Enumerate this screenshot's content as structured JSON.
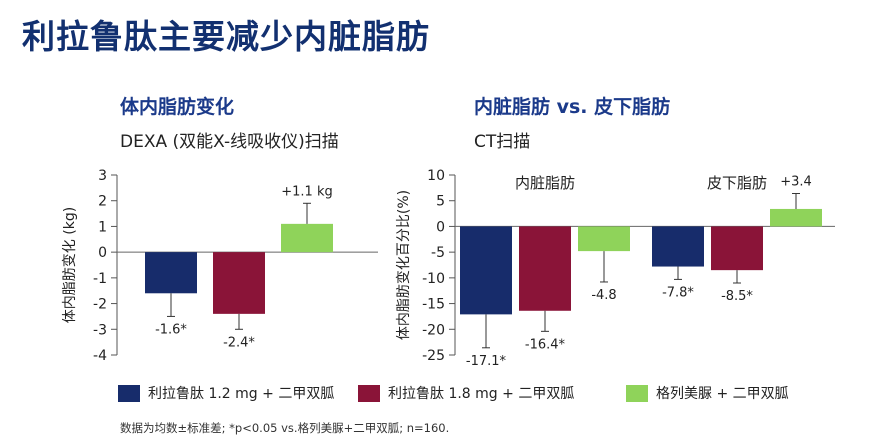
{
  "title": "利拉鲁肽主要减少内脏脂肪",
  "colors": {
    "lira12": "#172c6b",
    "lira18": "#8a1438",
    "glim": "#8fd35a",
    "title": "#123070"
  },
  "legend": [
    {
      "label": "利拉鲁肽 1.2 mg + 二甲双胍",
      "color": "#172c6b"
    },
    {
      "label": "利拉鲁肽 1.8 mg + 二甲双胍",
      "color": "#8a1438"
    },
    {
      "label": "格列美脲 + 二甲双胍",
      "color": "#8fd35a"
    }
  ],
  "footnote": "数据为均数±标准差; *p<0.05 vs.格列美脲+二甲双胍; n=160.",
  "chart_data": [
    {
      "type": "bar",
      "title": "体内脂肪变化",
      "subtitle": "DEXA (双能X-线吸收仪)扫描",
      "ylabel": "体内脂肪变化 (kg)",
      "ylim": [
        -4,
        3
      ],
      "yticks": [
        3,
        2,
        1,
        0,
        -1,
        -2,
        -3,
        -4
      ],
      "groups": [
        ""
      ],
      "series": [
        {
          "name": "利拉鲁肽 1.2 mg + 二甲双胍",
          "values": [
            -1.6
          ],
          "errors": [
            0.9
          ],
          "labels": [
            "-1.6*"
          ]
        },
        {
          "name": "利拉鲁肽 1.8 mg + 二甲双胍",
          "values": [
            -2.4
          ],
          "errors": [
            0.6
          ],
          "labels": [
            "-2.4*"
          ]
        },
        {
          "name": "格列美脲 + 二甲双胍",
          "values": [
            1.1
          ],
          "errors": [
            0.8
          ],
          "labels": [
            "+1.1 kg"
          ]
        }
      ]
    },
    {
      "type": "bar",
      "title": "内脏脂肪 vs. 皮下脂肪",
      "subtitle": "CT扫描",
      "ylabel": "体内脂肪变化百分比(%)",
      "ylim": [
        -25,
        10
      ],
      "yticks": [
        10,
        5,
        0,
        -5,
        -10,
        -15,
        -20,
        -25
      ],
      "groups": [
        "内脏脂肪",
        "皮下脂肪"
      ],
      "series": [
        {
          "name": "利拉鲁肽 1.2 mg + 二甲双胍",
          "values": [
            -17.1,
            -7.8
          ],
          "errors": [
            6.5,
            2.5
          ],
          "labels": [
            "-17.1*",
            "-7.8*"
          ]
        },
        {
          "name": "利拉鲁肽 1.8 mg + 二甲双胍",
          "values": [
            -16.4,
            -8.5
          ],
          "errors": [
            4.0,
            2.5
          ],
          "labels": [
            "-16.4*",
            "-8.5*"
          ]
        },
        {
          "name": "格列美脲 + 二甲双胍",
          "values": [
            -4.8,
            3.4
          ],
          "errors": [
            6.0,
            3.0
          ],
          "labels": [
            "-4.8",
            "+3.4"
          ]
        }
      ]
    }
  ]
}
